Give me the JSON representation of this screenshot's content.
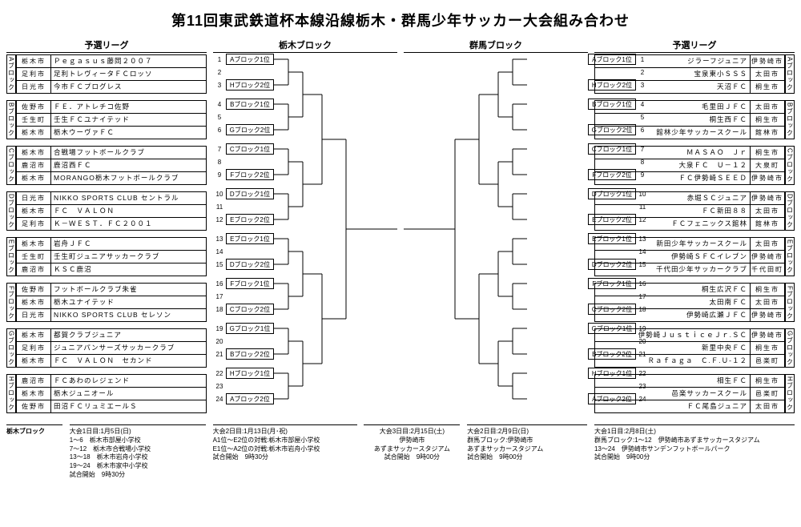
{
  "title": "第11回東武鉄道杯本線沿線栃木・群馬少年サッカー大会組み合わせ",
  "headers": {
    "left_league": "予選リーグ",
    "left_bracket": "栃木ブロック",
    "right_bracket": "群馬ブロック",
    "right_league": "予選リーグ"
  },
  "left_groups": [
    {
      "label": "Aブロック",
      "rows": [
        {
          "city": "栃木市",
          "team": "Ｐｅｇａｓｕｓ藤岡２００７",
          "n": 1
        },
        {
          "city": "足利市",
          "team": "足利トレヴィータＦＣロッソ",
          "n": 2
        },
        {
          "city": "日光市",
          "team": "今市ＦＣプログレス",
          "n": 3
        }
      ]
    },
    {
      "label": "Bブロック",
      "rows": [
        {
          "city": "佐野市",
          "team": "ＦＥ．アトレチコ佐野",
          "n": 4
        },
        {
          "city": "壬生町",
          "team": "壬生ＦＣユナイテッド",
          "n": 5
        },
        {
          "city": "栃木市",
          "team": "栃木ウーヴァＦＣ",
          "n": 6
        }
      ]
    },
    {
      "label": "Cブロック",
      "rows": [
        {
          "city": "栃木市",
          "team": "合戦場フットボールクラブ",
          "n": 7
        },
        {
          "city": "鹿沼市",
          "team": "鹿沼西ＦＣ",
          "n": 8
        },
        {
          "city": "栃木市",
          "team": "MORANGO栃木フットボールクラブ",
          "n": 9
        }
      ]
    },
    {
      "label": "Dブロック",
      "rows": [
        {
          "city": "日光市",
          "team": "NIKKO SPORTS CLUB セントラル",
          "n": 10
        },
        {
          "city": "栃木市",
          "team": "ＦＣ　ＶＡＬＯＮ",
          "n": 11
        },
        {
          "city": "足利市",
          "team": "Ｋ－ＷＥＳＴ．ＦＣ２００１",
          "n": 12
        }
      ]
    },
    {
      "label": "Eブロック",
      "rows": [
        {
          "city": "栃木市",
          "team": "岩舟ＪＦＣ",
          "n": 13
        },
        {
          "city": "壬生町",
          "team": "壬生町ジュニアサッカークラブ",
          "n": 14
        },
        {
          "city": "鹿沼市",
          "team": "ＫＳＣ鹿沼",
          "n": 15
        }
      ]
    },
    {
      "label": "Fブロック",
      "rows": [
        {
          "city": "佐野市",
          "team": "フットボールクラブ朱雀",
          "n": 16
        },
        {
          "city": "栃木市",
          "team": "栃木ユナイテッド",
          "n": 17
        },
        {
          "city": "日光市",
          "team": "NIKKO SPORTS CLUB セレソン",
          "n": 18
        }
      ]
    },
    {
      "label": "Gブロック",
      "rows": [
        {
          "city": "栃木市",
          "team": "都賀クラブジュニア",
          "n": 19
        },
        {
          "city": "足利市",
          "team": "ジュニアパンサーズサッカークラブ",
          "n": 20
        },
        {
          "city": "栃木市",
          "team": "ＦＣ　ＶＡＬＯＮ　セカンド",
          "n": 21
        }
      ]
    },
    {
      "label": "Hブロック",
      "rows": [
        {
          "city": "鹿沼市",
          "team": "ＦＣあわのレジェンド",
          "n": 22
        },
        {
          "city": "栃木市",
          "team": "栃木ジュニオール",
          "n": 23
        },
        {
          "city": "佐野市",
          "team": "田沼ＦＣリュミエールＳ",
          "n": 24
        }
      ]
    }
  ],
  "right_groups": [
    {
      "label": "Aブロック",
      "rows": [
        {
          "city": "伊勢崎市",
          "team": "ジラーフジュニア",
          "n": 1
        },
        {
          "city": "太田市",
          "team": "宝泉東小ＳＳＳ",
          "n": 2
        },
        {
          "city": "桐生市",
          "team": "天沼ＦＣ",
          "n": 3
        }
      ]
    },
    {
      "label": "Bブロック",
      "rows": [
        {
          "city": "太田市",
          "team": "毛里田ＪＦＣ",
          "n": 4
        },
        {
          "city": "桐生市",
          "team": "桐生西ＦＣ",
          "n": 5
        },
        {
          "city": "館林市",
          "team": "館林少年サッカースクール",
          "n": 6
        }
      ]
    },
    {
      "label": "Cブロック",
      "rows": [
        {
          "city": "桐生市",
          "team": "ＭＡＳＡＯ　Ｊｒ",
          "n": 7
        },
        {
          "city": "大泉町",
          "team": "大泉ＦＣ　Ｕ－１２",
          "n": 8
        },
        {
          "city": "伊勢崎市",
          "team": "ＦＣ伊勢崎ＳＥＥＤ",
          "n": 9
        }
      ]
    },
    {
      "label": "Dブロック",
      "rows": [
        {
          "city": "伊勢崎市",
          "team": "赤堀ＳＣジュニア",
          "n": 10
        },
        {
          "city": "太田市",
          "team": "ＦＣ新田８８",
          "n": 11
        },
        {
          "city": "館林市",
          "team": "ＦＣフェニックス館林",
          "n": 12
        }
      ]
    },
    {
      "label": "Eブロック",
      "rows": [
        {
          "city": "太田市",
          "team": "新田少年サッカースクール",
          "n": 13
        },
        {
          "city": "伊勢崎市",
          "team": "伊勢崎ＳＦＣイレブン",
          "n": 14
        },
        {
          "city": "千代田町",
          "team": "千代田少年サッカークラブ",
          "n": 15
        }
      ]
    },
    {
      "label": "Fブロック",
      "rows": [
        {
          "city": "桐生市",
          "team": "桐生広沢ＦＣ",
          "n": 16
        },
        {
          "city": "太田市",
          "team": "太田南ＦＣ",
          "n": 17
        },
        {
          "city": "伊勢崎市",
          "team": "伊勢崎広瀬ＪＦＣ",
          "n": 18
        }
      ]
    },
    {
      "label": "Gブロック",
      "rows": [
        {
          "city": "伊勢崎市",
          "team": "伊勢崎ＪｕｓｔｉｃｅＪｒ.ＳＣ",
          "n": 19
        },
        {
          "city": "桐生市",
          "team": "新里中央ＦＣ",
          "n": 20
        },
        {
          "city": "邑楽町",
          "team": "Ｒａｆａｇａ　Ｃ.Ｆ.Ｕ-１２",
          "n": 21
        }
      ]
    },
    {
      "label": "Hブロック",
      "rows": [
        {
          "city": "桐生市",
          "team": "相生ＦＣ",
          "n": 22
        },
        {
          "city": "邑楽町",
          "team": "邑楽サッカースクール",
          "n": 23
        },
        {
          "city": "太田市",
          "team": "ＦＣ尾島ジュニア",
          "n": 24
        }
      ]
    }
  ],
  "left_seeds": [
    {
      "n": 1,
      "lab": "Aブロック1位"
    },
    {
      "n": 2,
      "lab": ""
    },
    {
      "n": 3,
      "lab": "Hブロック2位"
    },
    {
      "n": 4,
      "lab": "Bブロック1位"
    },
    {
      "n": 5,
      "lab": ""
    },
    {
      "n": 6,
      "lab": "Gブロック2位"
    },
    {
      "n": 7,
      "lab": "Cブロック1位"
    },
    {
      "n": 8,
      "lab": ""
    },
    {
      "n": 9,
      "lab": "Fブロック2位"
    },
    {
      "n": 10,
      "lab": "Dブロック1位"
    },
    {
      "n": 11,
      "lab": ""
    },
    {
      "n": 12,
      "lab": "Eブロック2位"
    },
    {
      "n": 13,
      "lab": "Eブロック1位"
    },
    {
      "n": 14,
      "lab": ""
    },
    {
      "n": 15,
      "lab": "Dブロック2位"
    },
    {
      "n": 16,
      "lab": "Fブロック1位"
    },
    {
      "n": 17,
      "lab": ""
    },
    {
      "n": 18,
      "lab": "Cブロック2位"
    },
    {
      "n": 19,
      "lab": "Gブロック1位"
    },
    {
      "n": 20,
      "lab": ""
    },
    {
      "n": 21,
      "lab": "Bブロック2位"
    },
    {
      "n": 22,
      "lab": "Hブロック1位"
    },
    {
      "n": 23,
      "lab": ""
    },
    {
      "n": 24,
      "lab": "Aブロック2位"
    }
  ],
  "right_seeds": [
    {
      "n": 1,
      "lab": "Aブロック1位"
    },
    {
      "n": 2,
      "lab": ""
    },
    {
      "n": 3,
      "lab": "Hブロック2位"
    },
    {
      "n": 4,
      "lab": "Bブロック1位"
    },
    {
      "n": 5,
      "lab": ""
    },
    {
      "n": 6,
      "lab": "Gブロック2位"
    },
    {
      "n": 7,
      "lab": "Cブロック1位"
    },
    {
      "n": 8,
      "lab": ""
    },
    {
      "n": 9,
      "lab": "Fブロック2位"
    },
    {
      "n": 10,
      "lab": "Dブロック1位"
    },
    {
      "n": 11,
      "lab": ""
    },
    {
      "n": 12,
      "lab": "Eブロック2位"
    },
    {
      "n": 13,
      "lab": "Eブロック1位"
    },
    {
      "n": 14,
      "lab": ""
    },
    {
      "n": 15,
      "lab": "Dブロック2位"
    },
    {
      "n": 16,
      "lab": "Fブロック1位"
    },
    {
      "n": 17,
      "lab": ""
    },
    {
      "n": 18,
      "lab": "Cブロック2位"
    },
    {
      "n": 19,
      "lab": "Gブロック1位"
    },
    {
      "n": 20,
      "lab": ""
    },
    {
      "n": 21,
      "lab": "Bブロック2位"
    },
    {
      "n": 22,
      "lab": "Hブロック1位"
    },
    {
      "n": 23,
      "lab": ""
    },
    {
      "n": 24,
      "lab": "Aブロック2位"
    }
  ],
  "footer": {
    "left1_hd": "栃木ブロック",
    "left1": "大会1日目:1月5日(日)\n1～6　栃木市部屋小学校\n7～12　栃木市合戦場小学校\n13～18　栃木市岩舟小学校\n19～24　栃木市家中小学校\n試合開始　9時30分",
    "left2": "大会2日目:1月13日(月･祝)\nA1位～E2位の対戦:栃木市部屋小学校\nE1位～A2位の対戦:栃木市岩舟小学校\n試合開始　9時30分",
    "center": "大会3日目:2月15日(土)\n伊勢崎市\nあずまサッカースタジアム\n試合開始　9時00分",
    "right2": "大会2日目:2月9日(日)\n群馬ブロック:伊勢崎市\nあずまサッカースタジアム\n試合開始　9時00分",
    "right1": "大会1日目:2月8日(土)\n群馬ブロック:1～12　伊勢崎市あずまサッカースタジアム\n13～24　伊勢崎市サンデンフットボールパーク\n試合開始　9時00分"
  },
  "bracket_geom": {
    "seed_y": [
      8,
      24,
      40,
      64,
      80,
      96,
      120,
      136,
      152,
      176,
      192,
      208,
      232,
      248,
      264,
      288,
      304,
      320,
      344,
      360,
      376,
      400,
      416,
      432
    ],
    "stroke": "#000"
  }
}
